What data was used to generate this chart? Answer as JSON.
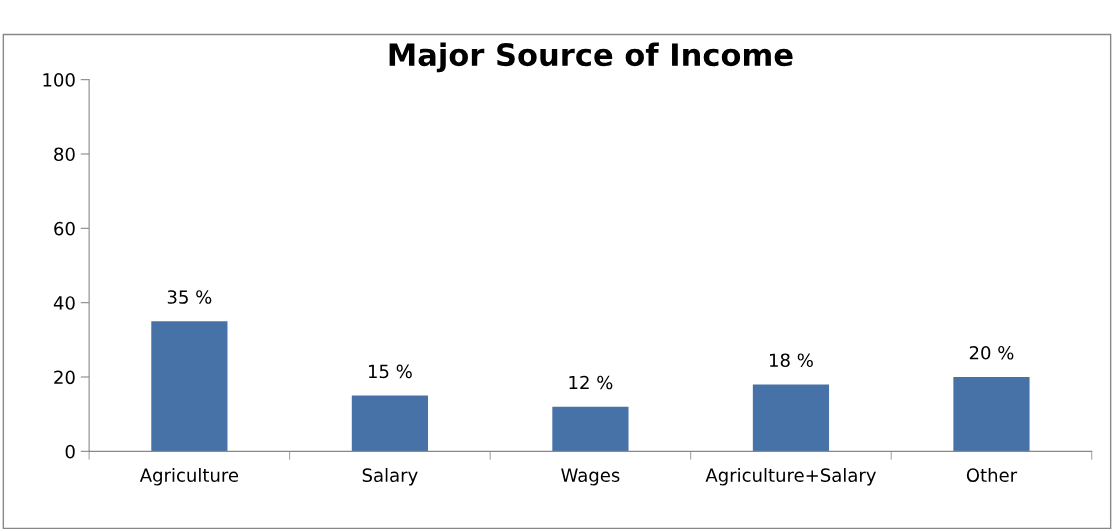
{
  "chart_data": {
    "type": "bar",
    "title": "Major Source of Income",
    "categories": [
      "Agriculture",
      "Salary",
      "Wages",
      "Agriculture+Salary",
      "Other"
    ],
    "values": [
      35,
      15,
      12,
      18,
      20
    ],
    "value_labels": [
      "35 %",
      "15 %",
      "12 %",
      "18 %",
      "20 %"
    ],
    "color": "#4672a8",
    "ylim": [
      0,
      100
    ],
    "yticks": [
      0,
      20,
      40,
      60,
      80,
      100
    ],
    "grid": false,
    "legend": false
  }
}
